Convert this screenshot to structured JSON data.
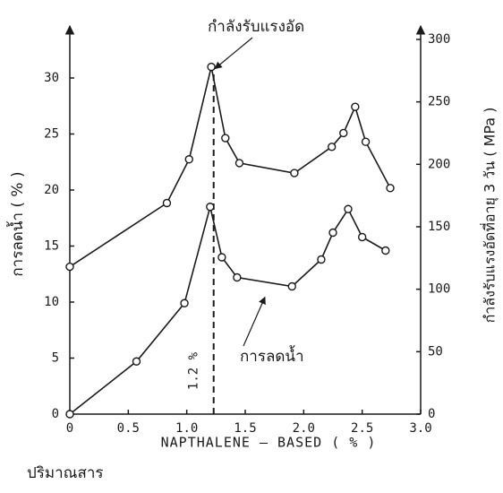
{
  "chart_data": {
    "type": "line",
    "xlabel": "NAPTHALENE – BASED ( % )",
    "xlabel_prefix": "ปริมาณสาร",
    "ylabel": "การลดน้ำ ( % )",
    "y2label": "กำลังรับแรงอัดที่อายุ 3 วัน ( MPa )",
    "xlim": [
      0,
      3.0
    ],
    "xticks": [
      0,
      0.5,
      {
        "value": 1.0,
        "label": "1.0"
      },
      1.5,
      {
        "value": 2.0,
        "label": "2.0"
      },
      2.5,
      {
        "value": 3.0,
        "label": "3.0"
      }
    ],
    "ylim": [
      0,
      34
    ],
    "yticks": [
      0,
      5,
      10,
      15,
      20,
      25,
      30
    ],
    "y2lim": [
      0,
      305
    ],
    "y2ticks": [
      0,
      50,
      100,
      150,
      200,
      250,
      300
    ],
    "reference_line": {
      "x": 1.23,
      "label": "1.2 %"
    },
    "series": [
      {
        "name": "กำลังรับแรงอัด",
        "color": "#1a1a1a",
        "axis": "y2",
        "x": [
          0,
          0.83,
          1.02,
          1.21,
          1.33,
          1.45,
          1.92,
          2.24,
          2.34,
          2.44,
          2.53,
          2.74
        ],
        "values": [
          118,
          169,
          204,
          278,
          221,
          201,
          193,
          214,
          225,
          246,
          218,
          181
        ]
      },
      {
        "name": "การลดน้ำ",
        "color": "#1a1a1a",
        "axis": "y",
        "x": [
          0,
          0.57,
          0.98,
          1.2,
          1.3,
          1.43,
          1.9,
          2.15,
          2.25,
          2.38,
          2.5,
          2.7
        ],
        "values": [
          0,
          4.7,
          9.9,
          18.5,
          14,
          12.2,
          11.4,
          13.8,
          16.2,
          18.3,
          15.8,
          14.6
        ]
      }
    ]
  }
}
